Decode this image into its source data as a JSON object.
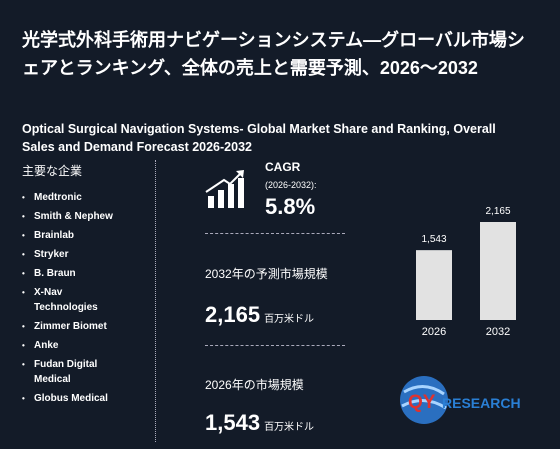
{
  "header": {
    "title": "光学式外科手術用ナビゲーションシステム—グローバル市場シェアとランキング、全体の売上と需要予測、2026～2032",
    "subtitle": "Optical Surgical Navigation Systems- Global Market Share and Ranking, Overall Sales and Demand Forecast 2026-2032"
  },
  "companies": {
    "title": "主要な企業",
    "items": [
      "Medtronic",
      "Smith & Nephew",
      "Brainlab",
      "Stryker",
      "B. Braun",
      "X-Nav Technologies",
      "Zimmer Biomet",
      "Anke",
      "Fudan Digital Medical",
      "Globus Medical"
    ]
  },
  "cagr": {
    "label": "CAGR",
    "period": "(2026-2032):",
    "value": "5.8%"
  },
  "forecast": {
    "label": "2032年の予測市場規模",
    "value": "2,165",
    "unit": "百万米ドル"
  },
  "current": {
    "label": "2026年の市場規模",
    "value": "1,543",
    "unit": "百万米ドル"
  },
  "logo": {
    "part1": "QY",
    "part2": "RESEARCH"
  },
  "chart_data": {
    "type": "bar",
    "categories": [
      "2026",
      "2032"
    ],
    "values": [
      1543,
      2165
    ],
    "value_labels": [
      "1,543",
      "2,165"
    ],
    "color": "#e2e2e2"
  }
}
